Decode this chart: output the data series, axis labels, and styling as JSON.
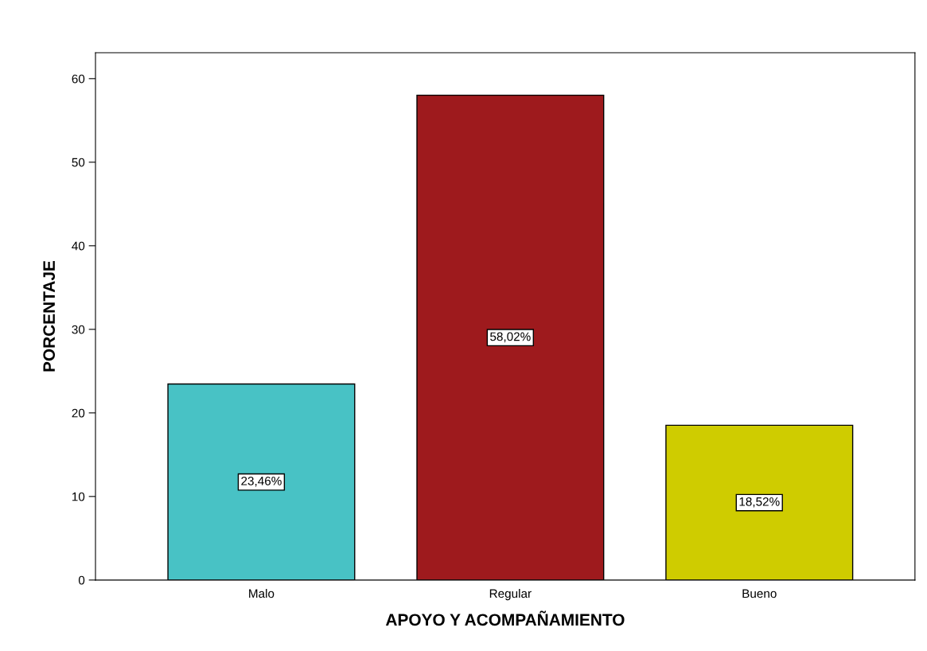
{
  "chart_data": {
    "type": "bar",
    "xlabel": "APOYO Y ACOMPAÑAMIENTO",
    "ylabel": "PORCENTAJE",
    "categories": [
      "Malo",
      "Regular",
      "Bueno"
    ],
    "values": [
      23.46,
      58.02,
      18.52
    ],
    "colors": [
      "#48c2c5",
      "#9e1a1d",
      "#cfcc00"
    ],
    "value_labels": [
      "23,46%",
      "58,02%",
      "18,52%"
    ],
    "ylim": [
      0,
      63.1
    ],
    "yticks": [
      0,
      10,
      20,
      30,
      40,
      50,
      60
    ],
    "grid": false,
    "legend": false
  }
}
